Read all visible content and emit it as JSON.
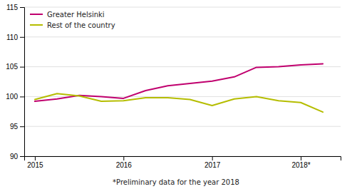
{
  "chart_data": {
    "type": "line",
    "annotations": [
      "*Preliminary data for the year 2018"
    ],
    "x": [
      2015.0,
      2015.25,
      2015.5,
      2015.75,
      2016.0,
      2016.25,
      2016.5,
      2016.75,
      2017.0,
      2017.25,
      2017.5,
      2017.75,
      2018.0,
      2018.25
    ],
    "series": [
      {
        "name": "Greater Helsinki",
        "color": "#c0006e",
        "values": [
          99.2,
          99.6,
          100.2,
          100.0,
          99.7,
          101.0,
          101.8,
          102.2,
          102.6,
          103.3,
          104.9,
          105.0,
          105.3,
          105.5
        ]
      },
      {
        "name": "Rest of the country",
        "color": "#b5bd00",
        "values": [
          99.5,
          100.5,
          100.1,
          99.2,
          99.3,
          99.8,
          99.8,
          99.5,
          98.5,
          99.6,
          100.0,
          99.3,
          99.0,
          97.4
        ]
      }
    ],
    "xlim": [
      2014.88,
      2018.45
    ],
    "ylim": [
      90,
      115
    ],
    "xticks": [
      2015,
      2016,
      2017,
      {
        "value": 2018,
        "label": "2018*"
      }
    ],
    "yticks": [
      90,
      95,
      100,
      105,
      110,
      115
    ],
    "grid": true,
    "legend": "upper left"
  }
}
